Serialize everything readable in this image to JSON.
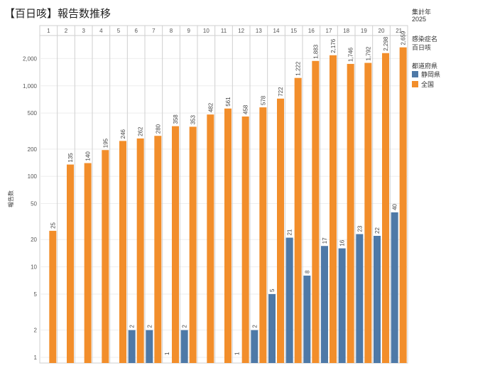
{
  "header": {
    "title": "【百日咳】報告数推移"
  },
  "filters": {
    "year_label": "集計年",
    "year_value": "2025",
    "disease_label": "感染症名",
    "disease_value": "百日咳",
    "prefecture_label": "都道府県"
  },
  "colors": {
    "shizuoka": "#4e79a7",
    "national": "#f28e2b"
  },
  "chart_data": {
    "type": "bar",
    "ylabel": "報告数",
    "yscale": "log",
    "ylim": [
      1,
      3000
    ],
    "yticks": [
      1,
      2,
      5,
      10,
      20,
      50,
      100,
      200,
      500,
      1000,
      2000
    ],
    "ytick_labels": [
      "1",
      "2",
      "5",
      "10",
      "20",
      "50",
      "100",
      "200",
      "500",
      "1,000",
      "2,000"
    ],
    "categories": [
      "1",
      "2",
      "3",
      "4",
      "5",
      "6",
      "7",
      "8",
      "9",
      "10",
      "11",
      "12",
      "13",
      "14",
      "15",
      "16",
      "17",
      "18",
      "19",
      "20",
      "21"
    ],
    "legend_position": "right",
    "series": [
      {
        "name": "静岡県",
        "values": [
          null,
          null,
          null,
          null,
          null,
          2,
          2,
          1,
          2,
          null,
          null,
          1,
          2,
          5,
          21,
          8,
          17,
          16,
          23,
          22,
          40
        ],
        "labels": [
          "",
          "",
          "",
          "",
          "",
          "2",
          "2",
          "1",
          "2",
          "",
          "",
          "1",
          "2",
          "5",
          "21",
          "8",
          "17",
          "16",
          "23",
          "22",
          "40"
        ]
      },
      {
        "name": "全国",
        "values": [
          25,
          135,
          140,
          195,
          246,
          262,
          280,
          358,
          353,
          482,
          561,
          458,
          578,
          722,
          1222,
          1883,
          2176,
          1746,
          1792,
          2298,
          2659
        ],
        "labels": [
          "25",
          "135",
          "140",
          "195",
          "246",
          "262",
          "280",
          "358",
          "353",
          "482",
          "561",
          "458",
          "578",
          "722",
          "1,222",
          "1,883",
          "2,176",
          "1,746",
          "1,792",
          "2,298",
          "2,659"
        ]
      }
    ]
  }
}
